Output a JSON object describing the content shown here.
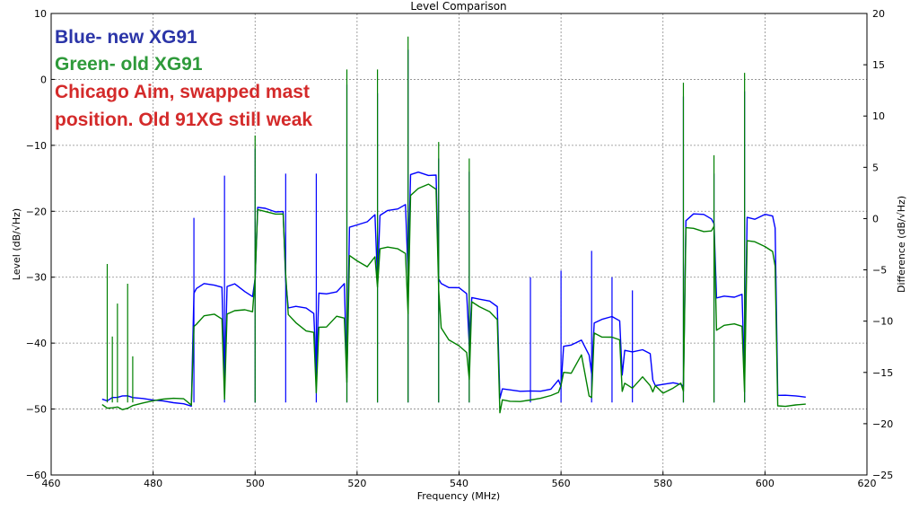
{
  "chart_data": {
    "type": "line",
    "title": "Level Comparison",
    "xlabel": "Frequency (MHz)",
    "ylabel": "Level (dB/√Hz)",
    "ylabel_right": "Difference (dB/√Hz)",
    "xlim": [
      460,
      620
    ],
    "ylim": [
      -60,
      10
    ],
    "ylim_right": [
      -25,
      20
    ],
    "x_ticks": [
      "460",
      "480",
      "500",
      "520",
      "540",
      "560",
      "580",
      "600",
      "620"
    ],
    "y_ticks": [
      "10",
      "0",
      "−10",
      "−20",
      "−30",
      "−40",
      "−50",
      "−60"
    ],
    "y_ticks_right": [
      "20",
      "15",
      "10",
      "5",
      "0",
      "−5",
      "−10",
      "−15",
      "−20",
      "−25"
    ],
    "grid": true,
    "annotations": [
      {
        "text": "Blue- new XG91",
        "color": "#2b35a8"
      },
      {
        "text": "Green- old XG91",
        "color": "#2e9a3a"
      },
      {
        "text": "Chicago Aim, swapped mast",
        "color": "#d42a2a"
      },
      {
        "text": "position. Old 91XG still weak",
        "color": "#d42a2a"
      }
    ],
    "series": [
      {
        "color": "#0000ff",
        "x": [
          470,
          471,
          472,
          473,
          474,
          475,
          476,
          478,
          480,
          482,
          484,
          486,
          487.5,
          488,
          488.5,
          490,
          492,
          493.5,
          494,
          494.5,
          496,
          498,
          499.5,
          500,
          500.5,
          502,
          504,
          505.5,
          506,
          506.5,
          508,
          510,
          511.5,
          512,
          512.5,
          514,
          516,
          517.5,
          518,
          518.5,
          520,
          522,
          523.5,
          524,
          524.5,
          526,
          528,
          529.5,
          530,
          530.5,
          532,
          534,
          535.5,
          536,
          536.5,
          538,
          540,
          541.5,
          542,
          542.5,
          544,
          546,
          547.5,
          548,
          548.5,
          550,
          552,
          554,
          556,
          558,
          559.5,
          560,
          560.5,
          562,
          564,
          565.5,
          566,
          566.5,
          568,
          570,
          571.5,
          572,
          572.5,
          574,
          576,
          577.5,
          578,
          578.5,
          580,
          582,
          583.5,
          584,
          584.5,
          586,
          588,
          589.5,
          590,
          590.5,
          592,
          594,
          595.5,
          596,
          596.5,
          598,
          600,
          601.5,
          602,
          602.5,
          604,
          606,
          608
        ],
        "y": [
          -48.5,
          -49,
          -48.7,
          -48.8,
          -48.6,
          -48.5,
          -48.6,
          -48.5,
          -48.5,
          -48.4,
          -48.5,
          -48.6,
          -49,
          -32,
          -31.5,
          -31,
          -31.5,
          -32,
          -47,
          -32,
          -31.5,
          -32.5,
          -33,
          -30,
          -19,
          -19,
          -19.5,
          -19.5,
          -30,
          -34.5,
          -34.5,
          -35,
          -36,
          -45,
          -33,
          -33,
          -32.5,
          -31,
          -45,
          -22,
          -21.5,
          -21,
          -20,
          -30,
          -20.5,
          -20,
          -20,
          -19.5,
          -30,
          -15,
          -14.5,
          -14.8,
          -14.5,
          -30,
          -30.5,
          -31,
          -31,
          -32,
          -40,
          -33,
          -33.5,
          -34,
          -35,
          -49,
          -47.5,
          -47.5,
          -47.5,
          -47.2,
          -47,
          -46.5,
          -45,
          -46,
          -40,
          -40,
          -39.5,
          -42,
          -45,
          -37.5,
          -37,
          -36.5,
          -37,
          -45,
          -41,
          -41,
          -40.5,
          -41,
          -45,
          -46,
          -46,
          -46,
          -46.5,
          -47,
          -22,
          -21,
          -21,
          -21.5,
          -22,
          -33,
          -32.5,
          -32.5,
          -32,
          -45,
          -20.5,
          -21,
          -20.5,
          -21,
          -23,
          -48.5,
          -48.5,
          -48.5,
          -48.5
        ],
        "spikes": [
          [
            488,
            -21
          ],
          [
            494,
            -14.6
          ],
          [
            500,
            -10.5
          ],
          [
            506,
            -14.3
          ],
          [
            512,
            -14.3
          ],
          [
            518,
            -0.8
          ],
          [
            524,
            -2.1
          ],
          [
            530,
            4.5
          ],
          [
            536,
            -12
          ],
          [
            542,
            -14
          ],
          [
            554,
            -30
          ],
          [
            560,
            -29
          ],
          [
            566,
            -26
          ],
          [
            570,
            -30
          ],
          [
            574,
            -32
          ],
          [
            584,
            -2.6
          ],
          [
            590,
            -14.3
          ],
          [
            596,
            -1.8
          ]
        ]
      },
      {
        "color": "#008000",
        "x": [
          470,
          471,
          472,
          473,
          474,
          475,
          476,
          478,
          480,
          482,
          484,
          486,
          487.5,
          488,
          488.5,
          490,
          492,
          493.5,
          494,
          494.5,
          496,
          498,
          499.5,
          500,
          500.5,
          502,
          504,
          505.5,
          506,
          506.5,
          508,
          510,
          511.5,
          512,
          512.5,
          514,
          516,
          517.5,
          518,
          518.5,
          520,
          522,
          523.5,
          524,
          524.5,
          526,
          528,
          529.5,
          530,
          530.5,
          532,
          534,
          535.5,
          536,
          536.5,
          538,
          540,
          541.5,
          542,
          542.5,
          544,
          546,
          547.5,
          548,
          548.5,
          550,
          552,
          554,
          556,
          558,
          559.5,
          560,
          560.5,
          562,
          564,
          565.5,
          566,
          566.5,
          568,
          570,
          571.5,
          572,
          572.5,
          574,
          576,
          577.5,
          578,
          578.5,
          580,
          582,
          583.5,
          584,
          584.5,
          586,
          588,
          589.5,
          590,
          590.5,
          592,
          594,
          595.5,
          596,
          596.5,
          598,
          600,
          601.5,
          602,
          602.5,
          604,
          606,
          608
        ],
        "y": [
          -49.5,
          -49.8,
          -49.5,
          -49.2,
          -49.5,
          -49.3,
          -49,
          -48.8,
          -48.7,
          -48.7,
          -48.8,
          -49,
          -50,
          -38,
          -37.5,
          -36,
          -35.5,
          -36,
          -48,
          -35,
          -34.5,
          -34.5,
          -35,
          -30,
          -20,
          -20.5,
          -21,
          -21,
          -30,
          -36,
          -37,
          -38,
          -38,
          -47,
          -37,
          -37,
          -35.5,
          -36,
          -46,
          -27,
          -28,
          -29,
          -27.5,
          -32,
          -26,
          -25.5,
          -25.5,
          -26,
          -35,
          -17,
          -16,
          -15.5,
          -16.5,
          -32,
          -38,
          -40,
          -41,
          -42,
          -46,
          -34,
          -34.5,
          -35,
          -36,
          -50,
          -48,
          -48.3,
          -48.5,
          -48.5,
          -48.5,
          -48.3,
          -48,
          -47,
          -45,
          -45,
          -42,
          -48,
          -48,
          -38,
          -38.5,
          -38.5,
          -39,
          -47,
          -46,
          -47,
          -45.5,
          -47,
          -48,
          -47,
          -48,
          -47,
          -46,
          -47,
          -22,
          -22,
          -22.5,
          -22.5,
          -22,
          -38,
          -37.5,
          -37.5,
          -38,
          -48,
          -25,
          -25,
          -25.5,
          -26,
          -28,
          -49,
          -49,
          -48.8,
          -48.8
        ],
        "spikes": [
          [
            471,
            -28
          ],
          [
            472,
            -39
          ],
          [
            473,
            -34
          ],
          [
            475,
            -31
          ],
          [
            476,
            -42
          ],
          [
            500,
            -8.5
          ],
          [
            518,
            1.5
          ],
          [
            524,
            1.5
          ],
          [
            530,
            6.5
          ],
          [
            536,
            -9.5
          ],
          [
            542,
            -12
          ],
          [
            584,
            -0.5
          ],
          [
            590,
            -11.5
          ],
          [
            596,
            1
          ]
        ]
      }
    ]
  }
}
